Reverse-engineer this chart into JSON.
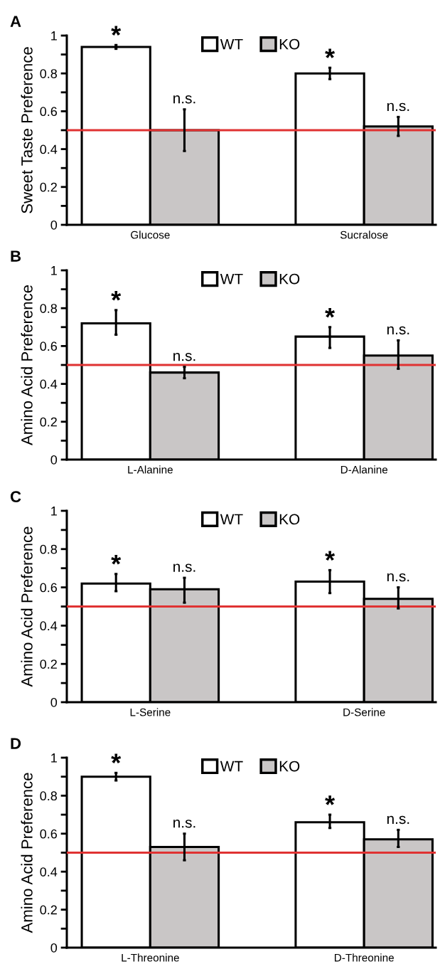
{
  "chart_data": [
    {
      "type": "bar",
      "title": "A",
      "ylabel": "Sweet Taste Preference",
      "categories": [
        "Glucose",
        "Sucralose"
      ],
      "series": [
        {
          "name": "WT",
          "color": "#ffffff",
          "values": [
            0.94,
            0.8
          ],
          "errors": [
            [
              0.93,
              0.95
            ],
            [
              0.77,
              0.83
            ]
          ]
        },
        {
          "name": "KO",
          "color": "#c9c6c6",
          "values": [
            0.5,
            0.52
          ],
          "errors": [
            [
              0.39,
              0.61
            ],
            [
              0.47,
              0.57
            ]
          ]
        }
      ],
      "annotations": [
        "*",
        "n.s.",
        "*",
        "n.s."
      ],
      "ylim": [
        0,
        1
      ],
      "yticks": [
        0,
        {
          "value": 0.1,
          "label": null
        },
        0.2,
        {
          "value": 0.3,
          "label": null
        },
        0.4,
        {
          "value": 0.5,
          "label": null
        },
        0.6,
        {
          "value": 0.7,
          "label": null
        },
        0.8,
        {
          "value": 0.9,
          "label": null
        },
        1
      ],
      "ref_lines": [
        {
          "axis": "y",
          "value": 0.5,
          "color": "#e03232"
        }
      ],
      "legend": "top",
      "grid": false
    },
    {
      "type": "bar",
      "title": "B",
      "ylabel": "Amino Acid Preference",
      "categories": [
        "L-Alanine",
        "D-Alanine"
      ],
      "series": [
        {
          "name": "WT",
          "color": "#ffffff",
          "values": [
            0.72,
            0.65
          ],
          "errors": [
            [
              0.66,
              0.79
            ],
            [
              0.59,
              0.7
            ]
          ]
        },
        {
          "name": "KO",
          "color": "#c9c6c6",
          "values": [
            0.46,
            0.55
          ],
          "errors": [
            [
              0.43,
              0.49
            ],
            [
              0.48,
              0.63
            ]
          ]
        }
      ],
      "annotations": [
        "*",
        "n.s.",
        "*",
        "n.s."
      ],
      "ylim": [
        0,
        1
      ],
      "yticks": [
        0,
        {
          "value": 0.1,
          "label": null
        },
        0.2,
        {
          "value": 0.3,
          "label": null
        },
        0.4,
        {
          "value": 0.5,
          "label": null
        },
        0.6,
        {
          "value": 0.7,
          "label": null
        },
        0.8,
        {
          "value": 0.9,
          "label": null
        },
        1
      ],
      "ref_lines": [
        {
          "axis": "y",
          "value": 0.5,
          "color": "#e03232"
        }
      ],
      "legend": "top",
      "grid": false
    },
    {
      "type": "bar",
      "title": "C",
      "ylabel": "Amino Acid Preference",
      "categories": [
        "L-Serine",
        "D-Serine"
      ],
      "series": [
        {
          "name": "WT",
          "color": "#ffffff",
          "values": [
            0.62,
            0.63
          ],
          "errors": [
            [
              0.58,
              0.67
            ],
            [
              0.57,
              0.69
            ]
          ]
        },
        {
          "name": "KO",
          "color": "#c9c6c6",
          "values": [
            0.59,
            0.54
          ],
          "errors": [
            [
              0.52,
              0.65
            ],
            [
              0.49,
              0.6
            ]
          ]
        }
      ],
      "annotations": [
        "*",
        "n.s.",
        "*",
        "n.s."
      ],
      "ylim": [
        0,
        1
      ],
      "yticks": [
        0,
        {
          "value": 0.1,
          "label": null
        },
        0.2,
        {
          "value": 0.3,
          "label": null
        },
        0.4,
        {
          "value": 0.5,
          "label": null
        },
        0.6,
        {
          "value": 0.7,
          "label": null
        },
        0.8,
        {
          "value": 0.9,
          "label": null
        },
        1
      ],
      "ref_lines": [
        {
          "axis": "y",
          "value": 0.5,
          "color": "#e03232"
        }
      ],
      "legend": "top",
      "grid": false
    },
    {
      "type": "bar",
      "title": "D",
      "ylabel": "Amino Acid Preference",
      "categories": [
        "L-Threonine",
        "D-Threonine"
      ],
      "series": [
        {
          "name": "WT",
          "color": "#ffffff",
          "values": [
            0.9,
            0.66
          ],
          "errors": [
            [
              0.88,
              0.92
            ],
            [
              0.63,
              0.7
            ]
          ]
        },
        {
          "name": "KO",
          "color": "#c9c6c6",
          "values": [
            0.53,
            0.57
          ],
          "errors": [
            [
              0.46,
              0.6
            ],
            [
              0.53,
              0.62
            ]
          ]
        }
      ],
      "annotations": [
        "*",
        "n.s.",
        "*",
        "n.s."
      ],
      "ylim": [
        0,
        1
      ],
      "yticks": [
        0,
        {
          "value": 0.1,
          "label": null
        },
        0.2,
        {
          "value": 0.3,
          "label": null
        },
        0.4,
        {
          "value": 0.5,
          "label": null
        },
        0.6,
        {
          "value": 0.7,
          "label": null
        },
        0.8,
        {
          "value": 0.9,
          "label": null
        },
        1
      ],
      "ref_lines": [
        {
          "axis": "y",
          "value": 0.5,
          "color": "#e03232"
        }
      ],
      "legend": "top",
      "grid": false
    }
  ]
}
